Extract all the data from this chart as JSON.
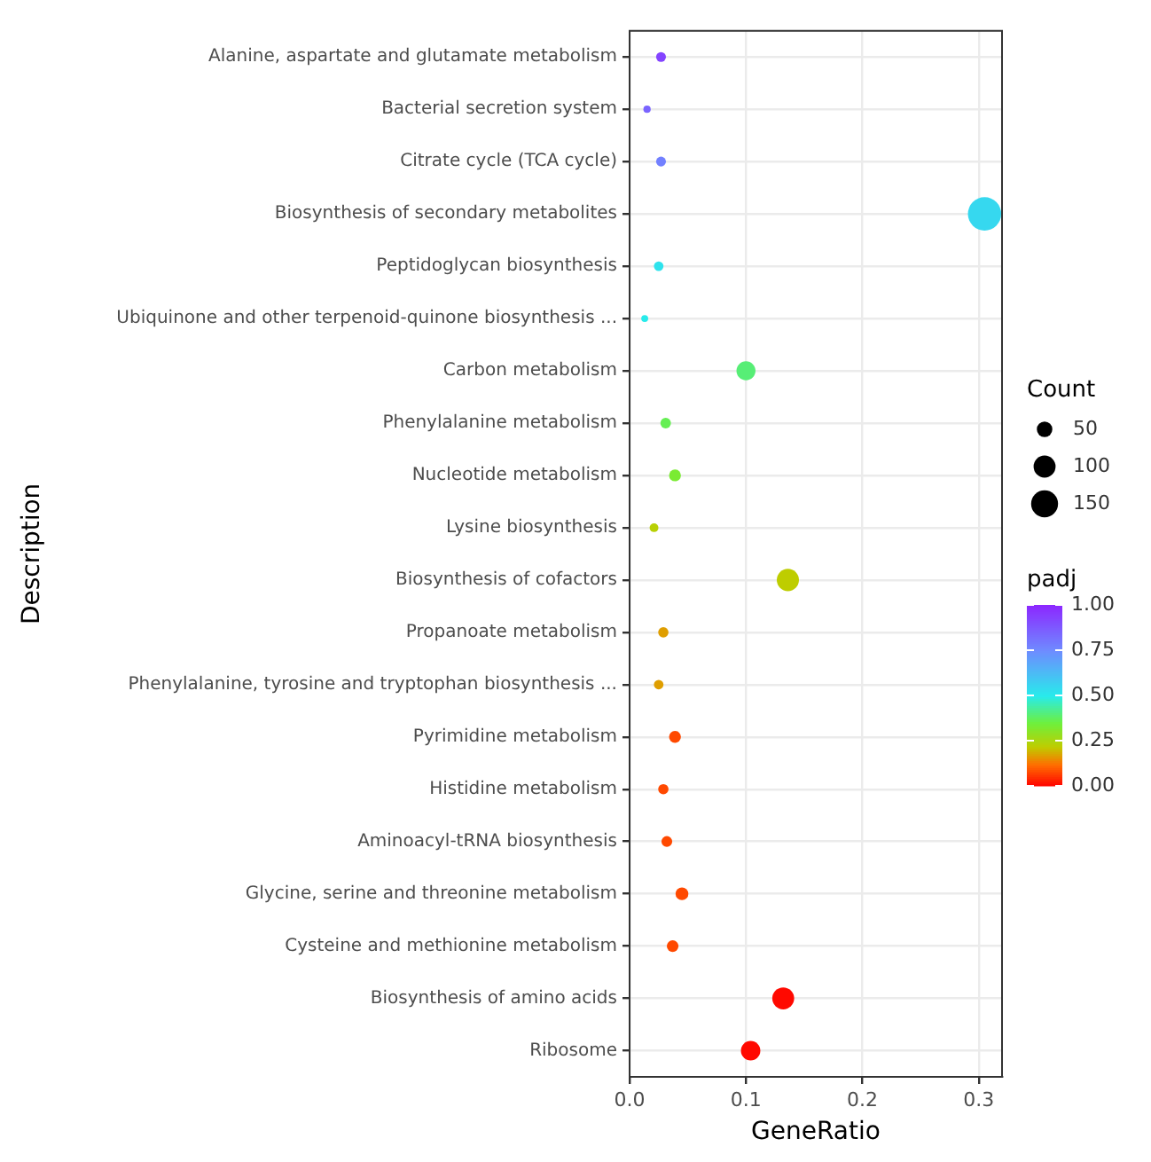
{
  "chart_data": {
    "type": "bubble",
    "categories": [
      "Alanine, aspartate and glutamate metabolism",
      "Bacterial secretion system",
      "Citrate cycle (TCA cycle)",
      "Biosynthesis of secondary metabolites",
      "Peptidoglycan biosynthesis",
      "Ubiquinone and other terpenoid-quinone biosynthesis ...",
      "Carbon metabolism",
      "Phenylalanine metabolism",
      "Nucleotide metabolism",
      "Lysine biosynthesis",
      "Biosynthesis of cofactors",
      "Propanoate metabolism",
      "Phenylalanine, tyrosine and tryptophan biosynthesis ...",
      "Pyrimidine metabolism",
      "Histidine metabolism",
      "Aminoacyl-tRNA biosynthesis",
      "Glycine, serine and threonine metabolism",
      "Cysteine and methionine metabolism",
      "Biosynthesis of amino acids",
      "Ribosome"
    ],
    "orientation": "horizontal",
    "values": [
      0.027,
      0.015,
      0.027,
      0.305,
      0.025,
      0.013,
      0.1,
      0.031,
      0.039,
      0.021,
      0.136,
      0.029,
      0.025,
      0.039,
      0.029,
      0.032,
      0.045,
      0.037,
      0.132,
      0.104
    ],
    "sizes": [
      20,
      11,
      20,
      229,
      19,
      10,
      75,
      23,
      29,
      16,
      102,
      22,
      19,
      29,
      22,
      24,
      34,
      28,
      99,
      78
    ],
    "size_legend": [
      50,
      100,
      150
    ],
    "cvalues": [
      0.93,
      0.85,
      0.78,
      0.55,
      0.52,
      0.5,
      0.4,
      0.37,
      0.33,
      0.23,
      0.22,
      0.17,
      0.17,
      0.08,
      0.08,
      0.08,
      0.08,
      0.08,
      0.01,
      0.01
    ],
    "clim": [
      0,
      1
    ],
    "cticks": [
      {
        "value": 0,
        "label": "0.00"
      },
      {
        "value": 0.25,
        "label": "0.25"
      },
      {
        "value": 0.5,
        "label": "0.50"
      },
      {
        "value": 0.75,
        "label": "0.75"
      },
      {
        "value": 1,
        "label": "1.00"
      }
    ],
    "xlim": [
      0,
      0.32
    ],
    "xticks": [
      {
        "value": 0,
        "label": "0.0"
      },
      {
        "value": 0.1,
        "label": "0.1"
      },
      {
        "value": 0.2,
        "label": "0.2"
      },
      {
        "value": 0.3,
        "label": "0.3"
      }
    ],
    "xlabel": "GeneRatio",
    "ylabel": "Description",
    "legend_title": "Count",
    "clabel": "padj",
    "grid": true
  }
}
